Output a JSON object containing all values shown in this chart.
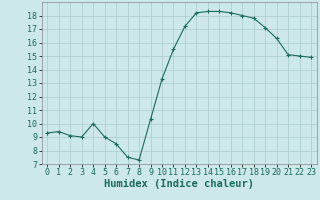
{
  "x": [
    0,
    1,
    2,
    3,
    4,
    5,
    6,
    7,
    8,
    9,
    10,
    11,
    12,
    13,
    14,
    15,
    16,
    17,
    18,
    19,
    20,
    21,
    22,
    23
  ],
  "y": [
    9.3,
    9.4,
    9.1,
    9.0,
    10.0,
    9.0,
    8.5,
    7.5,
    7.3,
    10.3,
    13.3,
    15.5,
    17.2,
    18.2,
    18.3,
    18.3,
    18.2,
    18.0,
    17.8,
    17.1,
    16.3,
    15.1,
    15.0,
    14.9
  ],
  "xlabel": "Humidex (Indice chaleur)",
  "xlim": [
    -0.5,
    23.5
  ],
  "ylim": [
    7,
    19
  ],
  "yticks": [
    7,
    8,
    9,
    10,
    11,
    12,
    13,
    14,
    15,
    16,
    17,
    18
  ],
  "xticks": [
    0,
    1,
    2,
    3,
    4,
    5,
    6,
    7,
    8,
    9,
    10,
    11,
    12,
    13,
    14,
    15,
    16,
    17,
    18,
    19,
    20,
    21,
    22,
    23
  ],
  "line_color": "#1a6b5a",
  "bg_color": "#cce8e8",
  "grid_color": "#aacccc",
  "xlabel_fontsize": 7.5,
  "tick_fontsize": 6.0
}
